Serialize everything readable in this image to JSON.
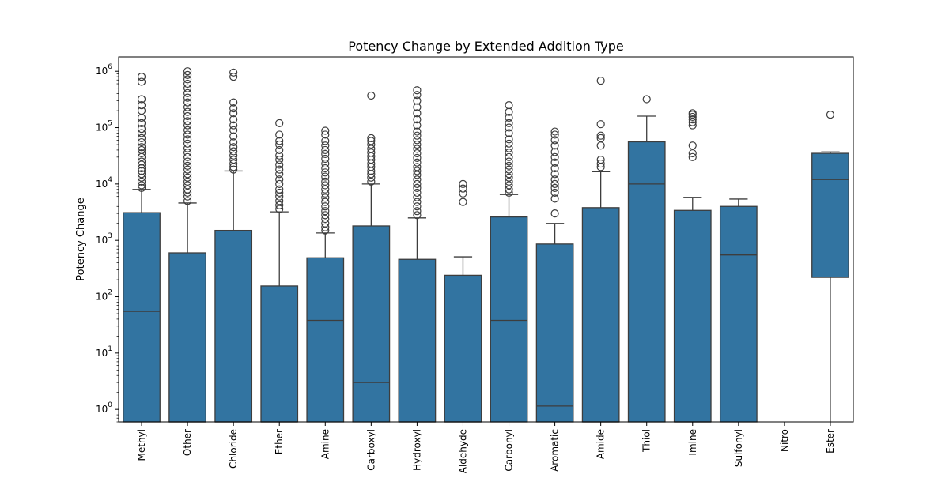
{
  "chart_data": {
    "type": "box",
    "title": "Potency Change by Extended Addition Type",
    "xlabel": "",
    "ylabel": "Potency Change",
    "yscale": "log",
    "ylim": [
      0.6,
      1800000
    ],
    "y_tick_labels": [
      {
        "exp": "0",
        "value": 1
      },
      {
        "exp": "1",
        "value": 10
      },
      {
        "exp": "2",
        "value": 100
      },
      {
        "exp": "3",
        "value": 1000
      },
      {
        "exp": "4",
        "value": 10000
      },
      {
        "exp": "5",
        "value": 100000
      },
      {
        "exp": "6",
        "value": 1000000
      }
    ],
    "y_tick_base": "10",
    "grid": false,
    "box_color": "#3274a1",
    "edge_color": "#3d3d3d",
    "categories": [
      "Methyl",
      "Other",
      "Chloride",
      "Ether",
      "Amine",
      "Carboxyl",
      "Hydroxyl",
      "Aldehyde",
      "Carbonyl",
      "Aromatic",
      "Amide",
      "Thiol",
      "Imine",
      "Sulfonyl",
      "Nitro",
      "Ester"
    ],
    "boxes": [
      {
        "q1": 0.6,
        "median": 55,
        "q3": 3100,
        "whisker_low": 0.6,
        "whisker_high": 8000,
        "outliers": [
          8500,
          9500,
          11000,
          13000,
          15000,
          17000,
          19000,
          22000,
          25000,
          30000,
          35000,
          40000,
          45000,
          55000,
          65000,
          80000,
          95000,
          120000,
          150000,
          200000,
          250000,
          320000,
          650000,
          800000
        ]
      },
      {
        "q1": 0.6,
        "median": 0.6,
        "q3": 600,
        "whisker_low": 0.6,
        "whisker_high": 4600,
        "outliers": [
          5000,
          6000,
          7000,
          8000,
          9500,
          11000,
          13000,
          15000,
          18000,
          21000,
          25000,
          30000,
          36000,
          43000,
          52000,
          62000,
          75000,
          90000,
          110000,
          130000,
          160000,
          190000,
          230000,
          280000,
          340000,
          410000,
          500000,
          600000,
          720000,
          860000,
          1000000
        ]
      },
      {
        "q1": 0.6,
        "median": 0.6,
        "q3": 1500,
        "whisker_low": 0.6,
        "whisker_high": 17000,
        "outliers": [
          18000,
          20000,
          23000,
          27000,
          32000,
          38000,
          45000,
          55000,
          70000,
          90000,
          110000,
          140000,
          180000,
          220000,
          280000,
          800000,
          950000
        ]
      },
      {
        "q1": 0.6,
        "median": 0.6,
        "q3": 155,
        "whisker_low": 0.6,
        "whisker_high": 3200,
        "outliers": [
          3600,
          4200,
          5000,
          6000,
          7000,
          8000,
          10000,
          12000,
          15000,
          18000,
          22000,
          27000,
          32000,
          40000,
          50000,
          58000,
          75000,
          120000
        ]
      },
      {
        "q1": 0.6,
        "median": 38,
        "q3": 490,
        "whisker_low": 0.6,
        "whisker_high": 1350,
        "outliers": [
          1500,
          1700,
          2000,
          2400,
          2800,
          3300,
          4000,
          4800,
          5700,
          6800,
          8000,
          9500,
          11000,
          13500,
          16000,
          19000,
          23000,
          28000,
          34000,
          40000,
          48000,
          58000,
          75000,
          88000
        ]
      },
      {
        "q1": 0.6,
        "median": 3,
        "q3": 1800,
        "whisker_low": 0.6,
        "whisker_high": 10000,
        "outliers": [
          11000,
          13000,
          15000,
          17000,
          20000,
          23000,
          27000,
          31000,
          36000,
          42000,
          50000,
          58000,
          65000,
          370000
        ]
      },
      {
        "q1": 0.6,
        "median": 0.6,
        "q3": 460,
        "whisker_low": 0.6,
        "whisker_high": 2500,
        "outliers": [
          2800,
          3300,
          4000,
          4800,
          5800,
          7000,
          8500,
          10000,
          12000,
          14500,
          17000,
          20000,
          24000,
          29000,
          35000,
          42000,
          50000,
          60000,
          72000,
          85000,
          110000,
          140000,
          180000,
          230000,
          300000,
          380000,
          460000
        ]
      },
      {
        "q1": 0.6,
        "median": 0.6,
        "q3": 240,
        "whisker_low": 0.6,
        "whisker_high": 510,
        "outliers": [
          4800,
          6800,
          8300,
          10000
        ]
      },
      {
        "q1": 0.6,
        "median": 38,
        "q3": 2600,
        "whisker_low": 0.6,
        "whisker_high": 6500,
        "outliers": [
          7000,
          8000,
          9500,
          11000,
          13000,
          15000,
          18000,
          21000,
          25000,
          30000,
          36000,
          43000,
          52000,
          62000,
          80000,
          100000,
          120000,
          150000,
          190000,
          250000
        ]
      },
      {
        "q1": 0.6,
        "median": 1.15,
        "q3": 860,
        "whisker_low": 0.6,
        "whisker_high": 2000,
        "outliers": [
          3000,
          5500,
          7000,
          8500,
          10000,
          12000,
          15000,
          19000,
          24000,
          30000,
          37000,
          48000,
          60000,
          75000,
          85000
        ]
      },
      {
        "q1": 0.6,
        "median": 0.6,
        "q3": 3800,
        "whisker_low": 0.6,
        "whisker_high": 16500,
        "outliers": [
          20000,
          23000,
          27000,
          48000,
          65000,
          72000,
          115000,
          680000
        ]
      },
      {
        "q1": 0.6,
        "median": 10000,
        "q3": 56000,
        "whisker_low": 0.6,
        "whisker_high": 160000,
        "outliers": [
          320000
        ]
      },
      {
        "q1": 0.6,
        "median": 0.6,
        "q3": 3400,
        "whisker_low": 0.6,
        "whisker_high": 5800,
        "outliers": [
          30000,
          35000,
          48000,
          110000,
          125000,
          140000,
          155000,
          170000,
          180000
        ]
      },
      {
        "q1": 0.6,
        "median": 550,
        "q3": 4000,
        "whisker_low": 0.6,
        "whisker_high": 5400,
        "outliers": []
      },
      null,
      {
        "q1": 220,
        "median": 12000,
        "q3": 35000,
        "whisker_low": 0.6,
        "whisker_high": 37000,
        "outliers": [
          170000
        ]
      }
    ]
  }
}
